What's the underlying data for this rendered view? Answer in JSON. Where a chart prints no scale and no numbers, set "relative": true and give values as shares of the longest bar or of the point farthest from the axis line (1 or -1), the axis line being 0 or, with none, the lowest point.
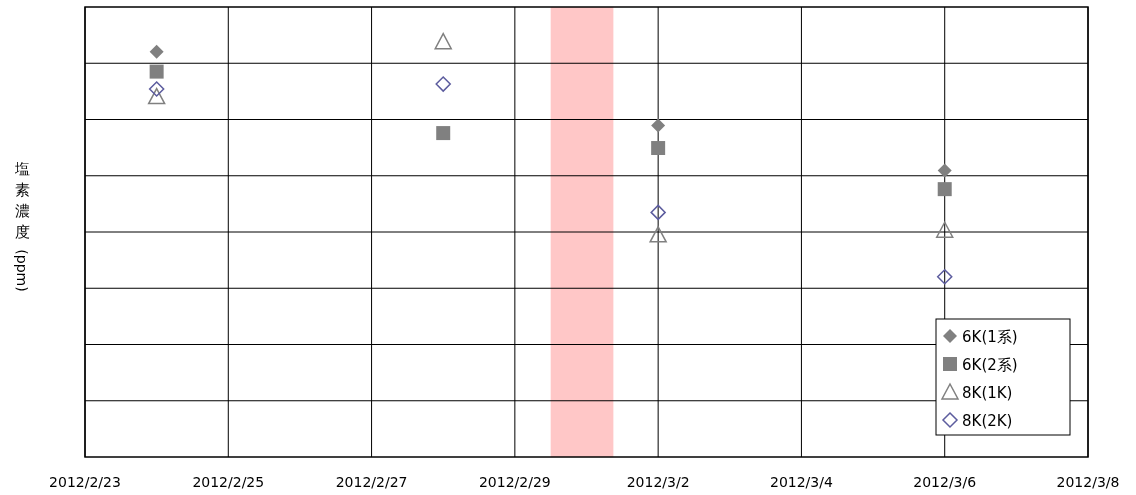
{
  "chart_data": {
    "type": "scatter",
    "relative": true,
    "ylabel": "塩素濃度(ppm)",
    "x": [
      "2012-02-24",
      "2012-02-28",
      "2012-03-02",
      "2012-03-06"
    ],
    "xlim": [
      "2012-02-23",
      "2012-03-08"
    ],
    "xticks": [
      {
        "value": "2012-02-23",
        "label": "2012/2/23"
      },
      {
        "value": "2012-02-25",
        "label": "2012/2/25"
      },
      {
        "value": "2012-02-27",
        "label": "2012/2/27"
      },
      {
        "value": "2012-02-29",
        "label": "2012/2/29"
      },
      {
        "value": "2012-03-02",
        "label": "2012/3/2"
      },
      {
        "value": "2012-03-04",
        "label": "2012/3/4"
      },
      {
        "value": "2012-03-06",
        "label": "2012/3/6"
      },
      {
        "value": "2012-03-08",
        "label": "2012/3/8"
      }
    ],
    "bands": [
      {
        "axis": "x",
        "from": "2012-02-29T12:00",
        "to": "2012-03-01T09:00",
        "color": "#ffc7c7"
      }
    ],
    "grid": true,
    "legend": "bottom right",
    "series": [
      {
        "name": "6K(1系)",
        "color": "#808080",
        "marker": "diamond",
        "values": [
          0.976,
          null,
          0.798,
          0.69
        ]
      },
      {
        "name": "6K(2系)",
        "color": "#808080",
        "marker": "square",
        "values": [
          0.928,
          0.78,
          0.744,
          0.645
        ]
      },
      {
        "name": "8K(1K)",
        "color": "#808080",
        "marker": "triangle",
        "values": [
          0.868,
          1,
          0.535,
          0.546
        ]
      },
      {
        "name": "8K(2K)",
        "color": "#5c5c9e",
        "marker": "diamond",
        "values": [
          0.886,
          0.898,
          0.589,
          0.434
        ]
      }
    ]
  }
}
